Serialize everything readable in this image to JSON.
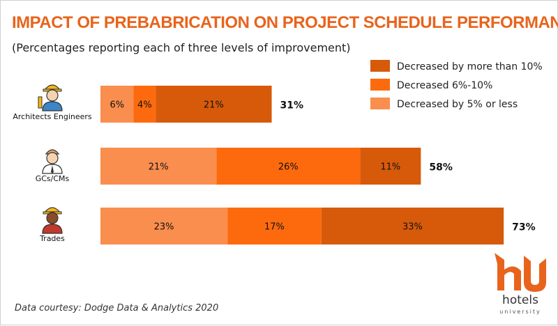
{
  "chart_data": {
    "type": "bar",
    "orientation": "horizontal",
    "stacked": true,
    "title": "IMPACT OF PREBABRICATION ON PROJECT SCHEDULE PERFORMANCE",
    "subtitle": "(Percentages reporting each of three levels of improvement)",
    "categories": [
      "Architects Engineers",
      "GCs/CMs",
      "Trades"
    ],
    "category_icons": [
      "architect-engineer-icon",
      "gc-cm-icon",
      "trades-worker-icon"
    ],
    "series": [
      {
        "name": "Decreased by 5% or less",
        "color": "#fa8e4e",
        "values": [
          6,
          21,
          23
        ],
        "labels": [
          "6%",
          "21%",
          "23%"
        ]
      },
      {
        "name": "Decreased 6%-10%",
        "color": "#fd6a0d",
        "values": [
          4,
          26,
          17
        ],
        "labels": [
          "4%",
          "26%",
          "17%"
        ]
      },
      {
        "name": "Decreased by more than 10%",
        "color": "#d75a0a",
        "values": [
          21,
          11,
          33
        ],
        "labels": [
          "21%",
          "11%",
          "33%"
        ]
      }
    ],
    "totals": [
      31,
      58,
      73
    ],
    "total_labels": [
      "31%",
      "58%",
      "73%"
    ],
    "legend": {
      "placement": "top-right",
      "entries": [
        {
          "label": "Decreased by more than 10%",
          "color": "#d75a0a"
        },
        {
          "label": "Decreased 6%-10%",
          "color": "#fd6a0d"
        },
        {
          "label": "Decreased by 5% or less",
          "color": "#fa8e4e"
        }
      ]
    },
    "xlim": [
      0,
      73
    ],
    "grid": false
  },
  "source": "Data courtesy: Dodge Data & Analytics 2020",
  "brand": {
    "name": "hotels",
    "subtitle": "university",
    "color": "#e8641c"
  }
}
